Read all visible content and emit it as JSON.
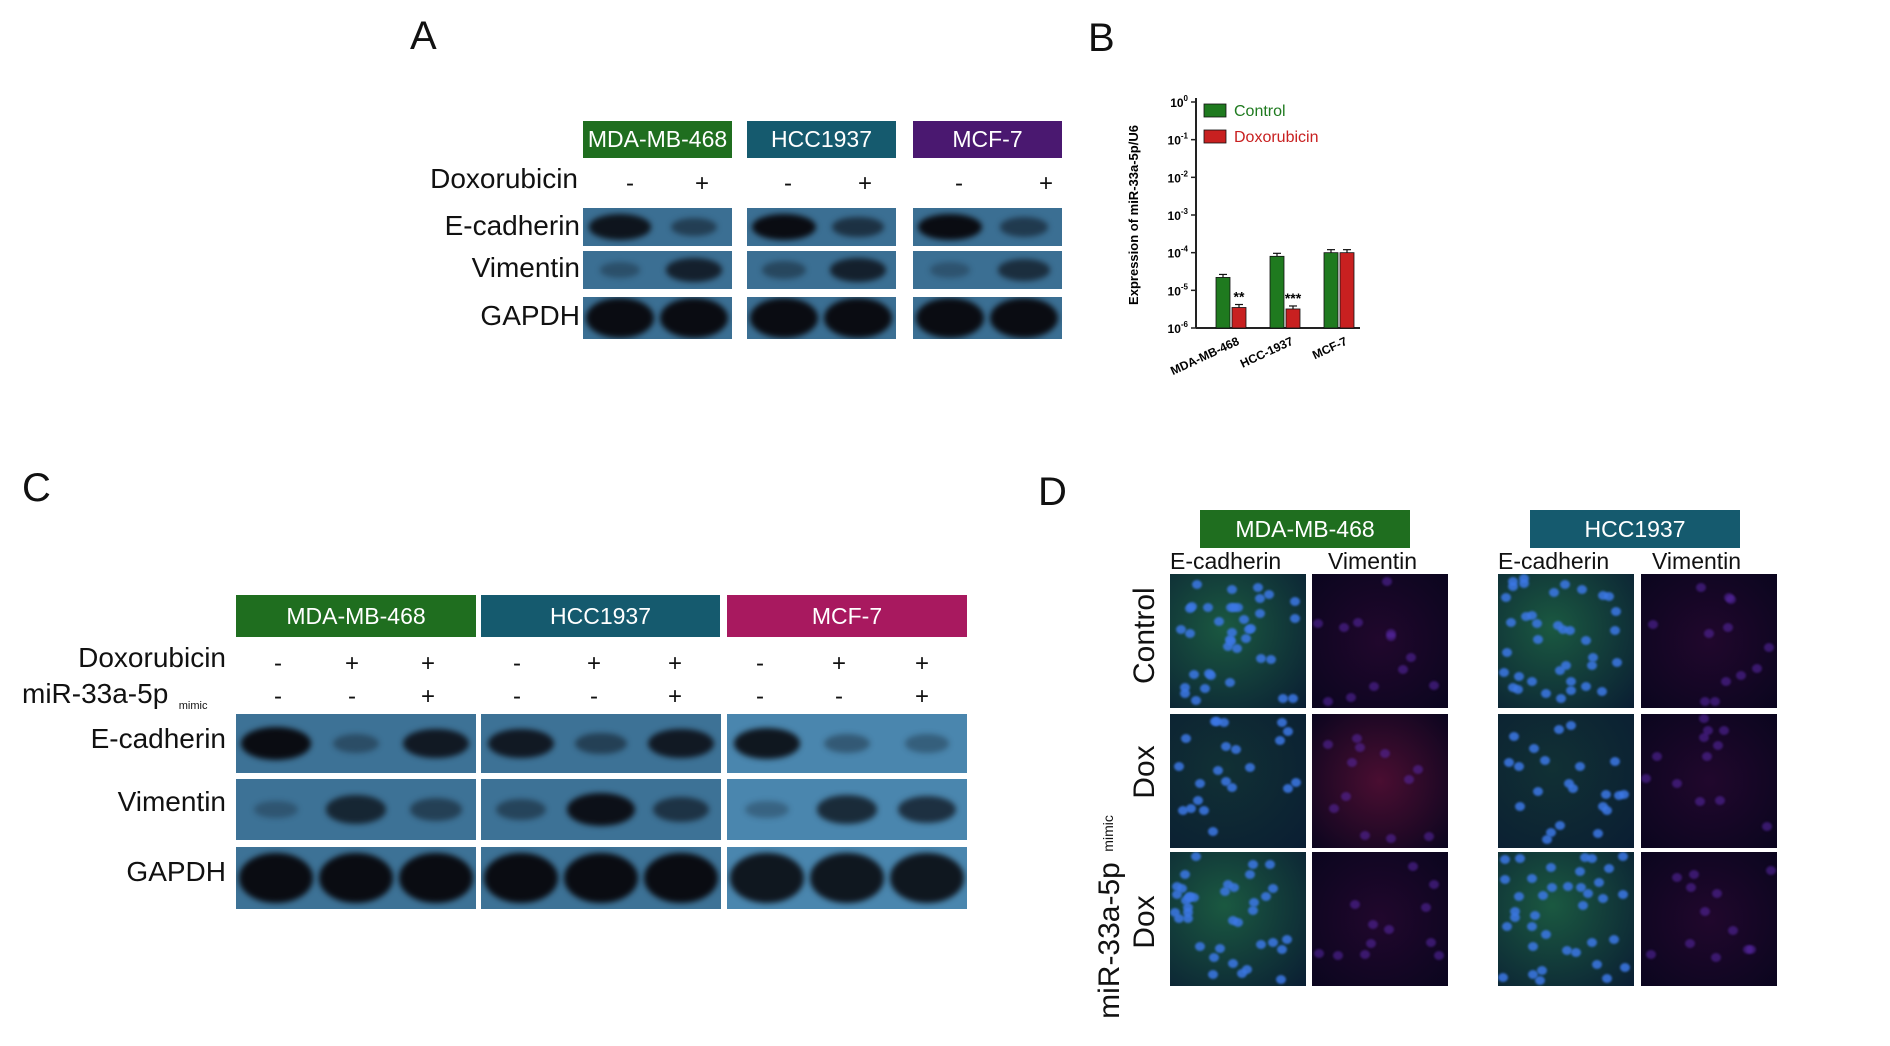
{
  "panels": {
    "a": "A",
    "b": "B",
    "c": "C",
    "d": "D"
  },
  "colors": {
    "green": "#1f6e1f",
    "teal": "#155a6e",
    "purple": "#4a1870",
    "magenta": "#a8195f",
    "blot_bg": "#3b6f93",
    "red": "#c82020"
  },
  "panelA": {
    "cells": [
      "MDA-MB-468",
      "HCC1937",
      "MCF-7"
    ],
    "treatment_label": "Doxorubicin",
    "signs": [
      "-",
      "+",
      "-",
      "+",
      "-",
      "+"
    ],
    "rows": [
      "E-cadherin",
      "Vimentin",
      "GAPDH"
    ]
  },
  "panelC": {
    "cells": [
      "MDA-MB-468",
      "HCC1937",
      "MCF-7"
    ],
    "treatment_label": "Doxorubicin",
    "mimic_label": "miR-33a-5p",
    "mimic_sub": "mimic",
    "dox_signs": [
      "-",
      "+",
      "+",
      "-",
      "+",
      "+",
      "-",
      "+",
      "+"
    ],
    "mimic_signs": [
      "-",
      "-",
      "+",
      "-",
      "-",
      "+",
      "-",
      "-",
      "+"
    ],
    "rows": [
      "E-cadherin",
      "Vimentin",
      "GAPDH"
    ]
  },
  "panelD": {
    "cells": [
      "MDA-MB-468",
      "HCC1937"
    ],
    "stains": [
      "E-cadherin",
      "Vimentin",
      "E-cadherin",
      "Vimentin"
    ],
    "rows": [
      "Control",
      "Dox",
      "Dox"
    ],
    "mimic_label": "miR-33a-5p",
    "mimic_sub": "mimic"
  },
  "chart_data": {
    "type": "bar",
    "title": "",
    "ylabel": "Expression of miR-33a-5p/U6",
    "xlabel": "",
    "yscale": "log",
    "ylim": [
      1e-06,
      1
    ],
    "yticks": [
      {
        "base": "10",
        "exp": "0"
      },
      {
        "base": "10",
        "exp": "-1"
      },
      {
        "base": "10",
        "exp": "-2"
      },
      {
        "base": "10",
        "exp": "-3"
      },
      {
        "base": "10",
        "exp": "-4"
      },
      {
        "base": "10",
        "exp": "-5"
      },
      {
        "base": "10",
        "exp": "-6"
      }
    ],
    "categories": [
      "MDA-MB-468",
      "HCC-1937",
      "MCF-7"
    ],
    "series": [
      {
        "name": "Control",
        "color": "#1f7a1f",
        "values": [
          2.2e-05,
          8e-05,
          0.0001
        ]
      },
      {
        "name": "Doxorubicin",
        "color": "#c82020",
        "values": [
          3.5e-06,
          3.2e-06,
          0.0001
        ]
      }
    ],
    "annotations": [
      "**",
      "***",
      ""
    ],
    "legend": "top-left"
  }
}
